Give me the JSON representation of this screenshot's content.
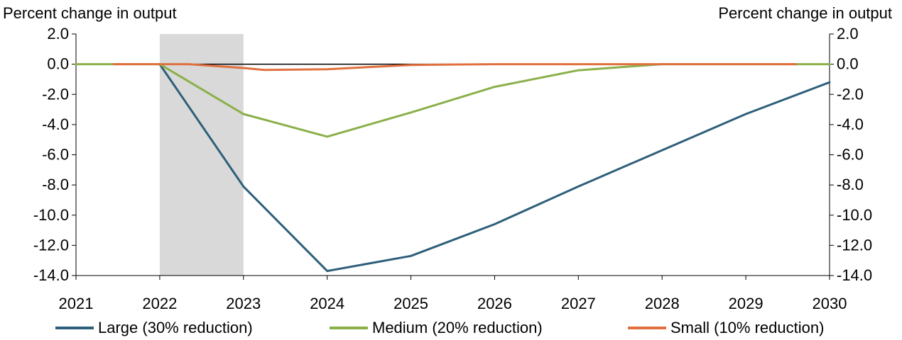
{
  "chart_data": {
    "type": "line",
    "ylabel_left": "Percent change in output",
    "ylabel_right": "Percent change in output",
    "xlabel": "",
    "title": "",
    "x_ticks": [
      "2021",
      "2022",
      "2023",
      "2024",
      "2025",
      "2026",
      "2027",
      "2028",
      "2029",
      "2030"
    ],
    "xlim": [
      2021,
      2030
    ],
    "ylim": [
      -14,
      2
    ],
    "y_ticks": [
      "2.0",
      "0.0",
      "-2.0",
      "-4.0",
      "-6.0",
      "-8.0",
      "-10.0",
      "-12.0",
      "-14.0"
    ],
    "shaded_region": [
      2022,
      2023
    ],
    "grid": false,
    "legend_position": "bottom",
    "series": [
      {
        "name": "Large (30% reduction)",
        "color": "#2e5f7a",
        "x": [
          2022,
          2023,
          2024,
          2025,
          2026,
          2027,
          2028,
          2029,
          2030
        ],
        "y": [
          0.0,
          -8.1,
          -13.7,
          -12.7,
          -10.6,
          -8.1,
          -5.7,
          -3.3,
          -1.2
        ]
      },
      {
        "name": "Medium (20% reduction)",
        "color": "#8bb04a",
        "x": [
          2021,
          2022,
          2023,
          2024,
          2025,
          2026,
          2027,
          2028,
          2029,
          2030
        ],
        "y": [
          0.0,
          0.0,
          -3.3,
          -4.8,
          -3.2,
          -1.5,
          -0.4,
          0.0,
          0.0,
          0.0
        ]
      },
      {
        "name": "Small (10% reduction)",
        "color": "#e0703f",
        "x": [
          2021.45,
          2022,
          2022.35,
          2023,
          2023.25,
          2024,
          2025,
          2026,
          2027,
          2028,
          2029,
          2029.6
        ],
        "y": [
          0.0,
          0.0,
          0.0,
          -0.25,
          -0.38,
          -0.33,
          -0.05,
          0.0,
          0.0,
          0.0,
          0.0,
          0.0
        ]
      }
    ]
  }
}
